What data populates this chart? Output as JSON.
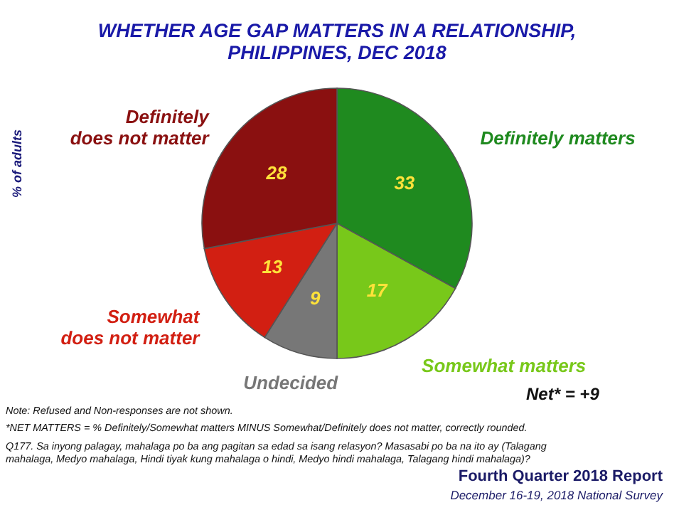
{
  "chart_data": {
    "type": "pie",
    "title": "WHETHER AGE GAP MATTERS IN A RELATIONSHIP, PHILIPPINES, DEC 2018",
    "ylabel": "% of adults",
    "categories": [
      "Definitely matters",
      "Somewhat matters",
      "Undecided",
      "Somewhat does not matter",
      "Definitely does not matter"
    ],
    "values": [
      33,
      17,
      9,
      13,
      28
    ],
    "colors": [
      "#1f8a1f",
      "#78c81a",
      "#777777",
      "#d21f12",
      "#8a1010"
    ],
    "data_labels": true,
    "annotations": [
      "Net* = +9",
      "Note: Refused and Non-responses are not shown.",
      "*NET MATTERS = % Definitely/Somewhat matters MINUS Somewhat/Definitely does not matter, correctly rounded.",
      "Q177. Sa inyong palagay, mahalaga po ba ang pagitan sa edad sa isang relasyon? Masasabi po ba na ito ay (Talagang mahalaga, Medyo mahalaga, Hindi tiyak kung mahalaga o hindi, Medyo hindi mahalaga, Talagang hindi mahalaga)?",
      "Fourth Quarter 2018 Report",
      "December 16-19, 2018 National Survey"
    ]
  }
}
